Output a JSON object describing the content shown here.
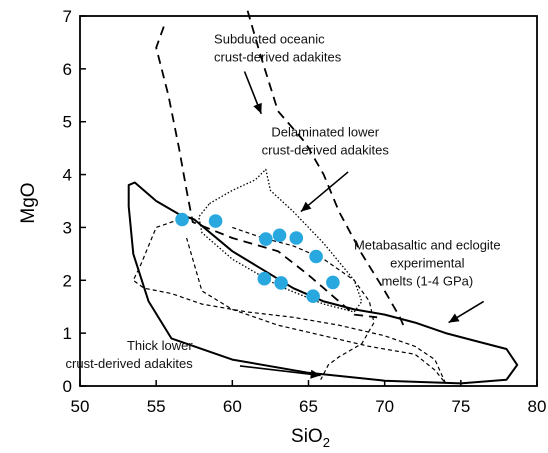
{
  "chart_data": {
    "type": "scatter",
    "xlabel": "SiO",
    "xlabel_subscript": "2",
    "ylabel": "MgO",
    "xlim": [
      50,
      80
    ],
    "ylim": [
      0,
      7
    ],
    "x_ticks": [
      "50",
      "55",
      "60",
      "65",
      "70",
      "75",
      "80"
    ],
    "y_ticks": [
      "0",
      "1",
      "2",
      "3",
      "4",
      "5",
      "6",
      "7"
    ],
    "marker_color": "#29a8df",
    "points": [
      {
        "x": 56.7,
        "y": 3.15
      },
      {
        "x": 58.9,
        "y": 3.12
      },
      {
        "x": 62.2,
        "y": 2.78
      },
      {
        "x": 63.1,
        "y": 2.85
      },
      {
        "x": 64.2,
        "y": 2.8
      },
      {
        "x": 65.5,
        "y": 2.45
      },
      {
        "x": 62.1,
        "y": 2.03
      },
      {
        "x": 63.2,
        "y": 1.95
      },
      {
        "x": 66.6,
        "y": 1.96
      },
      {
        "x": 65.3,
        "y": 1.7
      }
    ],
    "annotations": [
      {
        "lines": [
          "Subducted oceanic",
          "crust-derived adakites"
        ]
      },
      {
        "lines": [
          "Delaminated lower",
          "crust-derived adakites"
        ]
      },
      {
        "lines": [
          "Metabasaltic and eclogite",
          "experimental",
          "melts (1-4 GPa)"
        ]
      },
      {
        "lines": [
          "Thick lower",
          "crust-derived adakites"
        ]
      }
    ],
    "fields": [
      {
        "name": "metabasaltic-eclogite-melts",
        "style": "solid",
        "path": [
          [
            57.5,
            3.15
          ],
          [
            60,
            2.55
          ],
          [
            62,
            2.2
          ],
          [
            64,
            1.85
          ],
          [
            66,
            1.6
          ],
          [
            68,
            1.45
          ],
          [
            70,
            1.35
          ],
          [
            72,
            1.2
          ],
          [
            74,
            1.0
          ],
          [
            76,
            0.85
          ],
          [
            78,
            0.7
          ],
          [
            78.7,
            0.4
          ],
          [
            78,
            0.12
          ],
          [
            75,
            0.05
          ],
          [
            70,
            0.1
          ],
          [
            65,
            0.25
          ],
          [
            60,
            0.5
          ],
          [
            56,
            0.9
          ],
          [
            54.5,
            1.6
          ],
          [
            53.5,
            2.5
          ],
          [
            53.2,
            3.4
          ],
          [
            53.2,
            3.8
          ],
          [
            53.6,
            3.85
          ],
          [
            55,
            3.5
          ],
          [
            56.5,
            3.25
          ]
        ]
      },
      {
        "name": "delaminated-lower-crust",
        "style": "dotted",
        "path": [
          [
            58.5,
            3.45
          ],
          [
            60,
            3.7
          ],
          [
            61.5,
            3.9
          ],
          [
            62.2,
            4.1
          ],
          [
            62.5,
            3.7
          ],
          [
            64,
            3.3
          ],
          [
            66,
            2.7
          ],
          [
            68,
            2.0
          ],
          [
            68.5,
            1.6
          ],
          [
            68,
            1.4
          ],
          [
            66,
            1.55
          ],
          [
            63,
            1.9
          ],
          [
            60,
            2.4
          ],
          [
            58,
            2.9
          ],
          [
            57.8,
            3.2
          ]
        ]
      },
      {
        "name": "subducted-oceanic-crust-left",
        "style": "dashed",
        "path": [
          [
            55.5,
            6.8
          ],
          [
            55,
            6.4
          ],
          [
            55.8,
            5.5
          ],
          [
            56.5,
            4.5
          ],
          [
            57,
            3.7
          ],
          [
            57.4,
            3.1
          ],
          [
            60,
            2.8
          ],
          [
            63,
            2.55
          ],
          [
            65,
            2.1
          ],
          [
            67,
            1.6
          ],
          [
            68,
            1.35
          ],
          [
            69.5,
            1.3
          ]
        ]
      },
      {
        "name": "subducted-oceanic-crust-right",
        "style": "dashed",
        "path": [
          [
            61,
            7.1
          ],
          [
            61.8,
            6.3
          ],
          [
            63,
            5.2
          ],
          [
            64.8,
            4.6
          ],
          [
            66,
            4.0
          ],
          [
            67,
            3.3
          ],
          [
            68.5,
            2.5
          ],
          [
            70,
            1.8
          ],
          [
            71,
            1.3
          ],
          [
            71.3,
            1.1
          ]
        ]
      },
      {
        "name": "thick-lower-crust",
        "style": "short-dashed",
        "path": [
          [
            57,
            3.2
          ],
          [
            55,
            3.0
          ],
          [
            54,
            2.3
          ],
          [
            53.5,
            2.0
          ],
          [
            54.2,
            1.85
          ],
          [
            56,
            1.75
          ],
          [
            58,
            1.55
          ],
          [
            61,
            1.4
          ],
          [
            64,
            1.3
          ],
          [
            67,
            1.15
          ],
          [
            70,
            0.95
          ],
          [
            72,
            0.75
          ],
          [
            73.3,
            0.5
          ],
          [
            74,
            0.05
          ],
          [
            73.3,
            0.3
          ],
          [
            72,
            0.6
          ],
          [
            69,
            0.75
          ],
          [
            66,
            0.95
          ],
          [
            63,
            1.15
          ],
          [
            60,
            1.45
          ],
          [
            58,
            1.8
          ],
          [
            57.5,
            2.3
          ],
          [
            57,
            2.8
          ]
        ]
      },
      {
        "name": "thick-lower-crust-inner",
        "style": "short-dashed",
        "path": [
          [
            60,
            3.0
          ],
          [
            62,
            2.8
          ],
          [
            64,
            2.65
          ],
          [
            66,
            2.4
          ],
          [
            68,
            2.0
          ],
          [
            69,
            1.6
          ],
          [
            69.3,
            1.2
          ],
          [
            68.5,
            0.8
          ],
          [
            67,
            0.55
          ],
          [
            66.3,
            0.4
          ],
          [
            65.8,
            0.12
          ]
        ]
      }
    ]
  }
}
